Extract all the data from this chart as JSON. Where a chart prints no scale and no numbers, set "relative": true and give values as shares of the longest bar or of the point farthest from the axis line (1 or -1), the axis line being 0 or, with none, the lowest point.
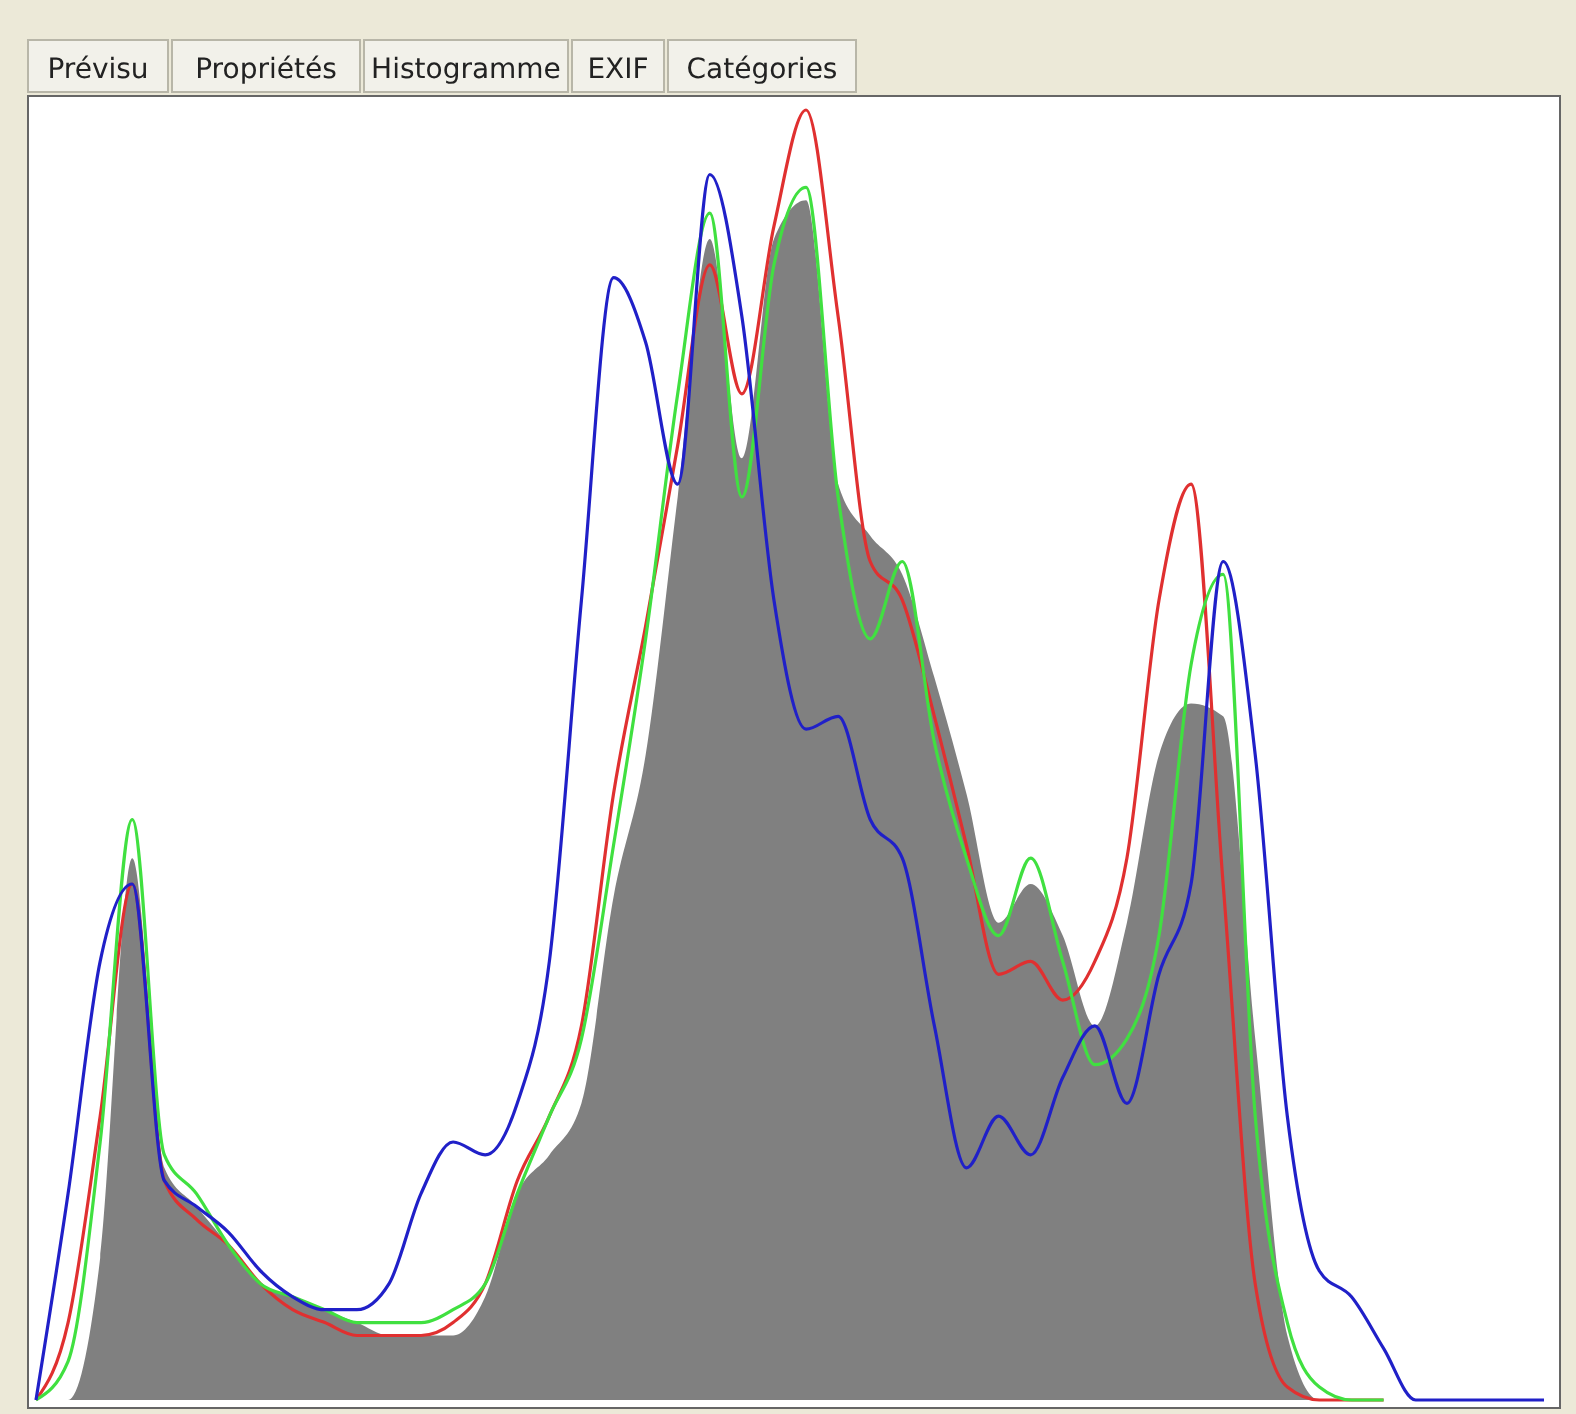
{
  "chart_data": {
    "type": "line",
    "relative": true,
    "annotations": [
      "Prévisu",
      "Propriétés",
      "Histogramme",
      "EXIF",
      "Catégories"
    ],
    "categories": [
      null,
      null,
      null,
      null,
      null,
      null,
      null,
      null,
      null,
      null,
      null,
      null,
      null,
      null,
      null,
      null,
      null,
      null,
      null,
      null,
      null,
      null,
      null,
      null,
      null,
      null,
      null,
      null,
      null,
      null,
      null,
      null,
      null,
      null,
      null,
      null,
      null,
      null,
      null,
      null,
      null,
      null,
      null,
      null,
      null,
      null,
      null,
      null
    ],
    "series": [
      {
        "type": "area",
        "color": "#808080",
        "values": [
          0,
          0,
          0.11,
          0.42,
          0.18,
          0.15,
          0.12,
          0.09,
          0.08,
          0.07,
          0.06,
          0.05,
          0.05,
          0.05,
          0.08,
          0.16,
          0.19,
          0.23,
          0.39,
          0.5,
          0.7,
          0.9,
          0.73,
          0.9,
          0.93,
          0.71,
          0.67,
          0.64,
          0.56,
          0.47,
          0.37,
          0.4,
          0.36,
          0.29,
          0.37,
          0.5,
          0.54,
          0.53,
          0.28,
          0.05,
          0,
          0,
          0,
          0,
          0,
          0,
          0,
          0
        ]
      },
      {
        "color": "#e03030",
        "values": [
          0,
          0.06,
          0.22,
          0.4,
          0.17,
          0.14,
          0.12,
          0.09,
          0.07,
          0.06,
          0.05,
          0.05,
          0.05,
          0.06,
          0.09,
          0.17,
          0.22,
          0.29,
          0.47,
          0.6,
          0.74,
          0.88,
          0.78,
          0.91,
          1,
          0.84,
          0.65,
          0.62,
          0.53,
          0.43,
          0.33,
          0.34,
          0.31,
          0.34,
          0.42,
          0.62,
          0.71,
          0.4,
          0.09,
          0.01,
          0,
          0,
          0,
          null,
          null,
          null,
          null,
          null
        ]
      },
      {
        "color": "#40e040",
        "values": [
          0,
          0.03,
          0.2,
          0.45,
          0.19,
          0.16,
          0.12,
          0.09,
          0.08,
          0.07,
          0.06,
          0.06,
          0.06,
          0.07,
          0.09,
          0.16,
          0.22,
          0.28,
          0.43,
          0.59,
          0.78,
          0.92,
          0.7,
          0.88,
          0.94,
          0.7,
          0.59,
          0.65,
          0.51,
          0.42,
          0.36,
          0.42,
          0.34,
          0.26,
          0.28,
          0.36,
          0.57,
          0.64,
          0.22,
          0.06,
          0.01,
          0,
          0,
          null,
          null,
          null,
          null,
          null
        ]
      },
      {
        "color": "#2020c8",
        "values": [
          0,
          0.16,
          0.34,
          0.4,
          0.17,
          0.15,
          0.13,
          0.1,
          0.08,
          0.07,
          0.07,
          0.09,
          0.16,
          0.2,
          0.19,
          0.23,
          0.34,
          0.62,
          0.87,
          0.82,
          0.71,
          0.95,
          0.84,
          0.62,
          0.52,
          0.53,
          0.45,
          0.42,
          0.29,
          0.18,
          0.22,
          0.19,
          0.25,
          0.29,
          0.23,
          0.33,
          0.4,
          0.65,
          0.5,
          0.22,
          0.1,
          0.08,
          0.04,
          0,
          0,
          0,
          0,
          0
        ]
      }
    ]
  }
}
